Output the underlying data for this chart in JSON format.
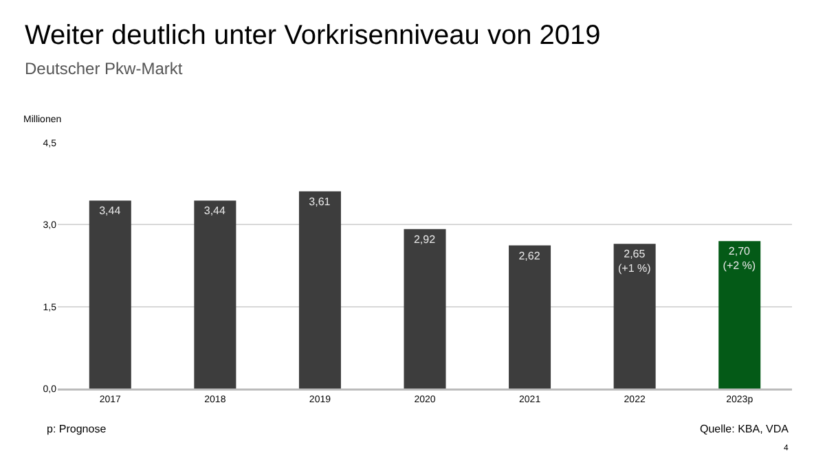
{
  "chart_data": {
    "type": "bar",
    "title": "Weiter deutlich unter Vorkrisenniveau von 2019",
    "subtitle": "Deutscher Pkw-Markt",
    "ylabel": "Millionen",
    "categories": [
      "2017",
      "2018",
      "2019",
      "2020",
      "2021",
      "2022",
      "2023p"
    ],
    "values": [
      3.44,
      3.44,
      3.61,
      2.92,
      2.62,
      2.65,
      2.7
    ],
    "colors": [
      "#3d3d3d",
      "#3d3d3d",
      "#3d3d3d",
      "#3d3d3d",
      "#3d3d3d",
      "#3d3d3d",
      "#045a17"
    ],
    "value_labels": [
      "3,44",
      "3,44",
      "3,61",
      "2,92",
      "2,62",
      "2,65\n(+1 %)",
      "2,70\n(+2 %)"
    ],
    "ylim": [
      0,
      4.5
    ],
    "yticks": [
      {
        "value": 0,
        "label": "0,0"
      },
      {
        "value": 1.5,
        "label": "1,5"
      },
      {
        "value": 3,
        "label": "3,0"
      },
      {
        "value": 4.5,
        "label": "4,5"
      }
    ],
    "grid": "y",
    "legend": false,
    "annotations": [
      "p: Prognose",
      "Quelle: KBA, VDA",
      "4"
    ]
  }
}
